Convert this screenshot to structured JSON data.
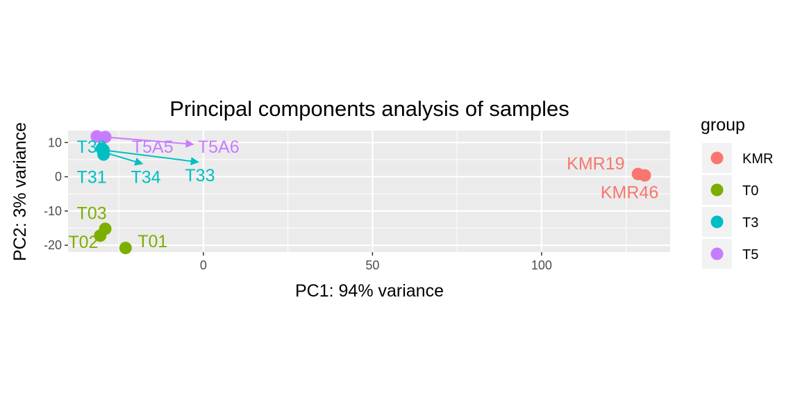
{
  "chart_data": {
    "type": "scatter",
    "title": "Principal components analysis of samples",
    "xlabel": "PC1: 94% variance",
    "ylabel": "PC2: 3% variance",
    "xlim": [
      -40,
      138
    ],
    "ylim": [
      -22,
      13.5
    ],
    "x_ticks": [
      0,
      50,
      100
    ],
    "y_ticks": [
      10,
      0,
      -10,
      -20
    ],
    "x_tick_labels": [
      "0",
      "50",
      "100"
    ],
    "y_tick_labels": [
      "10",
      "0",
      "-10",
      "-20"
    ],
    "grid": true,
    "legend": {
      "title": "group",
      "position": "right",
      "entries": [
        {
          "label": "KMR",
          "color": "#F8766D"
        },
        {
          "label": "T0",
          "color": "#7CAE00"
        },
        {
          "label": "T3",
          "color": "#00BFC4"
        },
        {
          "label": "T5",
          "color": "#C77CFF"
        }
      ]
    },
    "series": [
      {
        "name": "KMR",
        "color": "#F8766D",
        "points": [
          {
            "label": "KMR19",
            "x": 128.5,
            "y": 0.8,
            "lx": 116,
            "ly": 4
          },
          {
            "label": "KMR46",
            "x": 130.5,
            "y": 0.4,
            "lx": 126,
            "ly": -4.5
          }
        ]
      },
      {
        "name": "T0",
        "color": "#7CAE00",
        "points": [
          {
            "label": "T03",
            "x": -29,
            "y": -15.2,
            "lx": -33,
            "ly": -10.5
          },
          {
            "label": "T02",
            "x": -30.5,
            "y": -17.2,
            "lx": -35.5,
            "ly": -19
          },
          {
            "label": "T01",
            "x": -23,
            "y": -20.8,
            "lx": -15,
            "ly": -18.8
          }
        ]
      },
      {
        "name": "T3",
        "color": "#00BFC4",
        "points": [
          {
            "label": "T30",
            "x": -30,
            "y": 8.2,
            "lx": -33,
            "ly": 8.8
          },
          {
            "label": "T31",
            "x": -29.5,
            "y": 6.5,
            "lx": -33,
            "ly": 0
          },
          {
            "label": "T34",
            "x": -29.5,
            "y": 7.2,
            "lx": -17,
            "ly": 0,
            "ax": -18,
            "ay": 3.8
          },
          {
            "label": "T33",
            "x": -29.5,
            "y": 7.8,
            "lx": -1,
            "ly": 0.5,
            "ax": -1.5,
            "ay": 4.3
          }
        ]
      },
      {
        "name": "T5",
        "color": "#C77CFF",
        "points": [
          {
            "label": "T5A5",
            "x": -31.5,
            "y": 11.8,
            "lx": -15,
            "ly": 8.8
          },
          {
            "label": "T5A6",
            "x": -29,
            "y": 11.6,
            "lx": 4.5,
            "ly": 8.8,
            "ax": -3,
            "ay": 9.5
          }
        ]
      }
    ]
  }
}
